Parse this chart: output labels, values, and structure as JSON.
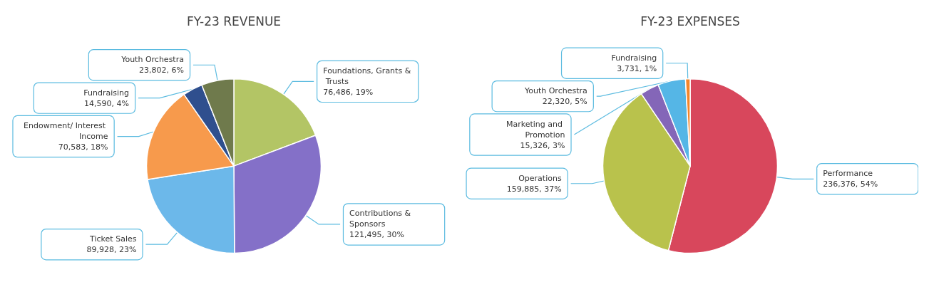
{
  "chart_data": [
    {
      "type": "pie",
      "title": "FY-23 REVENUE",
      "categories": [
        "Foundations, Grants & Trusts",
        "Contributions & Sponsors",
        "Ticket Sales",
        "Endowment/ Interest Income",
        "Fundraising",
        "Youth Orchestra"
      ],
      "values": [
        76486,
        121495,
        89928,
        70583,
        14590,
        23802
      ],
      "value_labels": [
        "76,486, 19%",
        "121,495, 30%",
        "89,928, 23%",
        "70,583, 18%",
        "14,590, 4%",
        "23,802, 6%"
      ],
      "colors": [
        "#b3c565",
        "#8470c8",
        "#6cb8ea",
        "#f79a4c",
        "#2f4f8e",
        "#6f7a4c"
      ],
      "legend": false
    },
    {
      "type": "pie",
      "title": "FY-23 EXPENSES",
      "categories": [
        "Performance",
        "Operations",
        "Marketing and Promotion",
        "Youth Orchestra",
        "Fundraising"
      ],
      "values": [
        236376,
        159885,
        15326,
        22320,
        3731
      ],
      "value_labels": [
        "236,376, 54%",
        "159,885, 37%",
        "15,326, 3%",
        "22,320, 5%",
        "3,731, 1%"
      ],
      "colors": [
        "#d8475c",
        "#b9c24c",
        "#8466b8",
        "#55b6e6",
        "#f3852a"
      ],
      "legend": false
    }
  ]
}
